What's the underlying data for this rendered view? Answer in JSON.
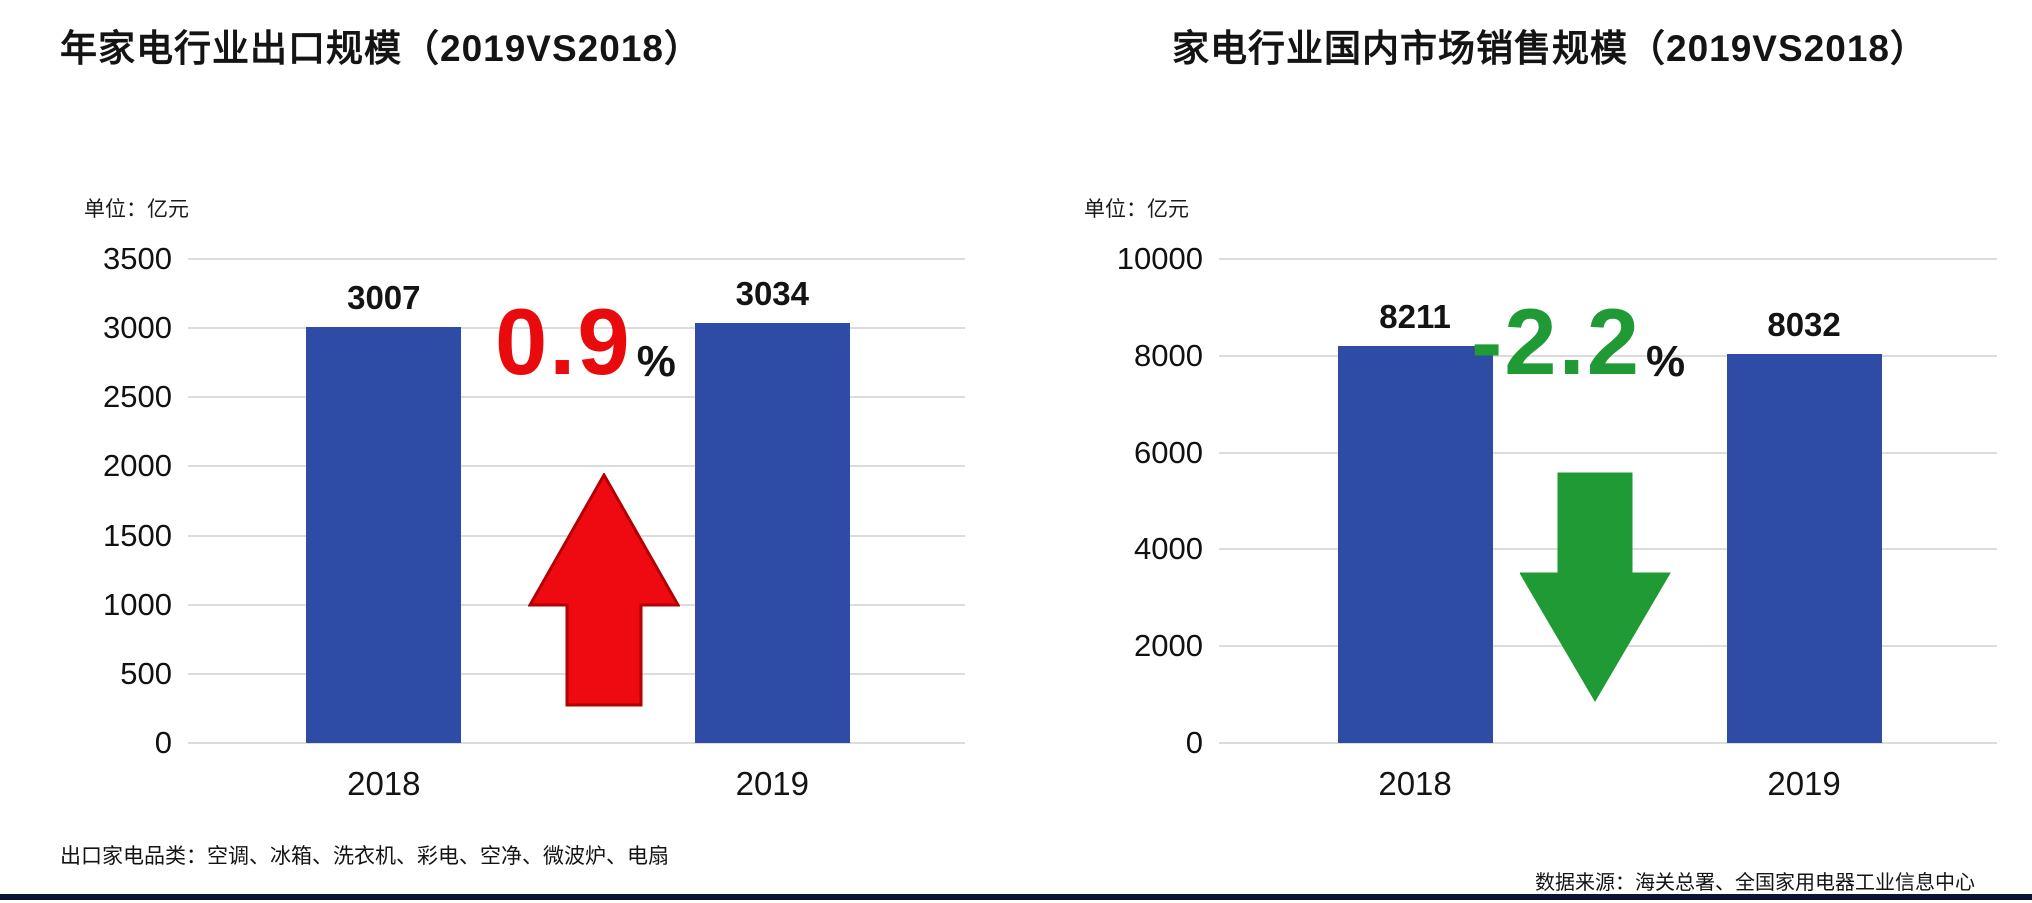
{
  "page": {
    "background": "#ffffff",
    "bottom_bar_color": "#0d1333"
  },
  "chart_data": [
    {
      "type": "bar",
      "title": "年家电行业出口规模（2019VS2018）",
      "unit": "单位：亿元",
      "categories": [
        "2018",
        "2019"
      ],
      "values": [
        3007,
        3034
      ],
      "value_labels": [
        "3007",
        "3034"
      ],
      "ylim": [
        0,
        3500
      ],
      "yticks": [
        3500,
        3000,
        2500,
        2000,
        1500,
        1000,
        500,
        0
      ],
      "grid": true,
      "legend": false,
      "bar_color": "#2e4ca6",
      "change": {
        "text": "0.9",
        "suffix": "%",
        "color": "#e90a0e",
        "arrow_fill": "#ee0a10",
        "arrow_stroke": "#b30005",
        "direction": "up"
      },
      "footnote": "出口家电品类：空调、冰箱、洗衣机、彩电、空净、微波炉、电扇"
    },
    {
      "type": "bar",
      "title": "家电行业国内市场销售规模（2019VS2018）",
      "unit": "单位：亿元",
      "categories": [
        "2018",
        "2019"
      ],
      "values": [
        8211,
        8032
      ],
      "value_labels": [
        "8211",
        "8032"
      ],
      "ylim": [
        0,
        10000
      ],
      "yticks": [
        10000,
        8000,
        6000,
        4000,
        2000,
        0
      ],
      "grid": true,
      "legend": false,
      "bar_color": "#2e4ca6",
      "change": {
        "text": "-2.2",
        "suffix": "%",
        "color": "#1f9a35",
        "arrow_fill": "#1f9a35",
        "arrow_stroke": "#1f9a35",
        "direction": "down"
      },
      "footnote": "数据来源：海关总署、全国家用电器工业信息中心"
    }
  ]
}
